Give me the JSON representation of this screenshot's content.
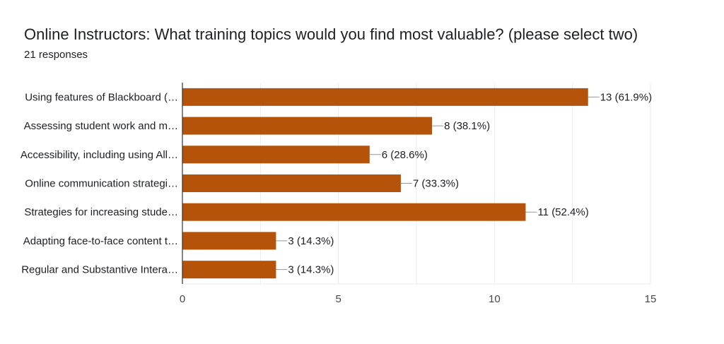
{
  "header": {
    "title": "Online Instructors: What training topics would you find most valuable? (please select two)",
    "responses": "21 responses"
  },
  "colors": {
    "bar": "#b45309",
    "grid": "#ebebeb",
    "axis": "#333333",
    "leader": "#999999"
  },
  "chart_data": {
    "type": "bar",
    "orientation": "horizontal",
    "title": "Online Instructors: What training topics would you find most valuable? (please select two)",
    "categories": [
      "Using features of Blackboard (…",
      "Assessing student work and m…",
      "Accessibility, including using All…",
      "Online communication strategi…",
      "Strategies for increasing stude…",
      "Adapting face-to-face content t…",
      "Regular and Substantive Intera…"
    ],
    "values": [
      13,
      8,
      6,
      7,
      11,
      3,
      3
    ],
    "value_labels": [
      "13 (61.9%)",
      "8 (38.1%)",
      "6 (28.6%)",
      "7 (33.3%)",
      "11 (52.4%)",
      "3 (14.3%)",
      "3 (14.3%)"
    ],
    "xlim": [
      0,
      15
    ],
    "xticks": [
      0,
      5,
      10,
      15
    ],
    "grid": true
  }
}
